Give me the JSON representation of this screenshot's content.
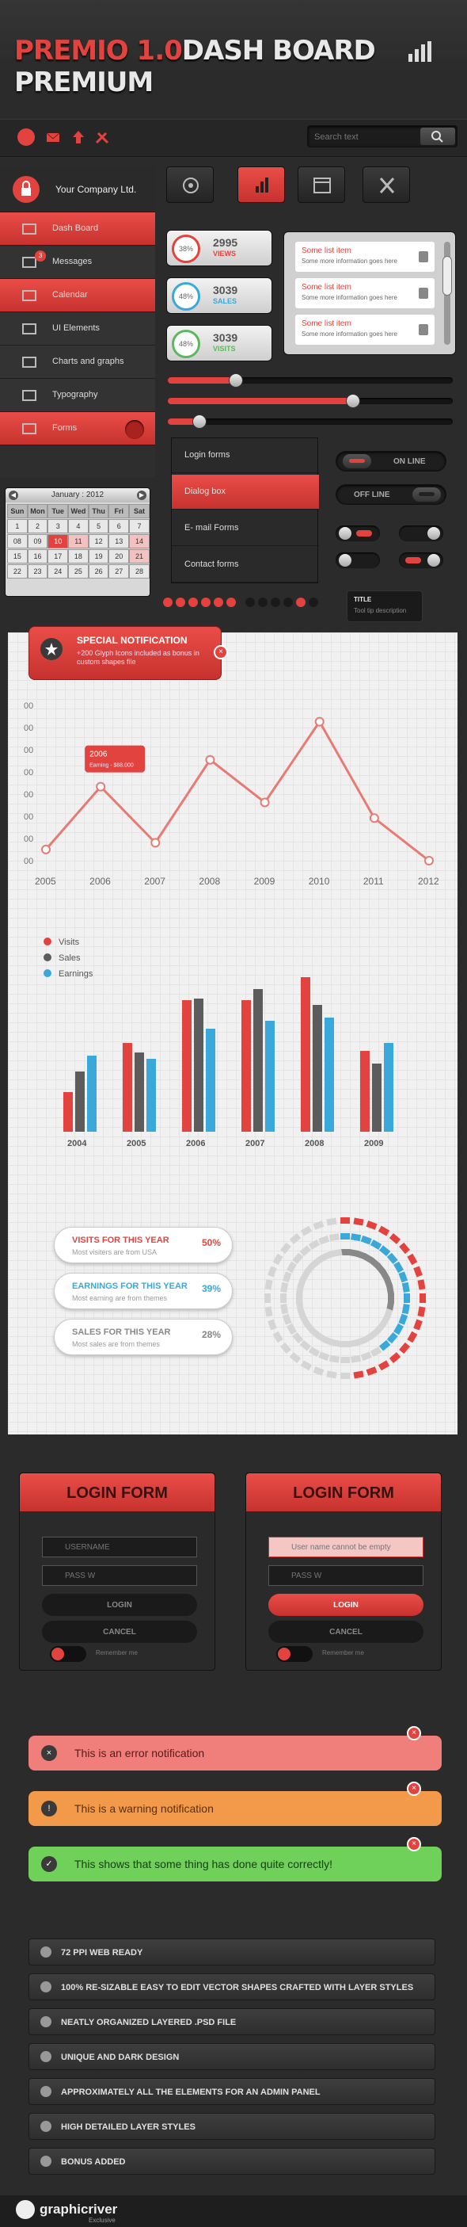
{
  "header": {
    "title_accent": "PREMIO 1.0",
    "title_rest": "DASH BOARD PREMIUM"
  },
  "topbar": {
    "search_placeholder": "Search text"
  },
  "sidebar": {
    "company": "Your Company Ltd.",
    "items": [
      {
        "label": "Dash Board",
        "icon": "presentation-icon",
        "active": true
      },
      {
        "label": "Messages",
        "icon": "envelope-icon",
        "badge": "3"
      },
      {
        "label": "Calendar",
        "icon": "calendar-icon",
        "active": true
      },
      {
        "label": "UI Elements",
        "icon": "grid-icon"
      },
      {
        "label": "Charts and graphs",
        "icon": "bar-chart-icon"
      },
      {
        "label": "Typography",
        "icon": "text-icon"
      },
      {
        "label": "Forms",
        "icon": "form-icon",
        "active": true
      }
    ]
  },
  "calendar": {
    "month": "January : 2012",
    "days": [
      "Sun",
      "Mon",
      "Tue",
      "Wed",
      "Thu",
      "Fri",
      "Sat"
    ],
    "rows": [
      [
        "1",
        "2",
        "3",
        "4",
        "5",
        "6",
        "7"
      ],
      [
        "08",
        "09",
        "10",
        "11",
        "12",
        "13",
        "14"
      ],
      [
        "15",
        "16",
        "17",
        "18",
        "19",
        "20",
        "21"
      ],
      [
        "22",
        "23",
        "24",
        "25",
        "26",
        "27",
        "28"
      ]
    ]
  },
  "stats": [
    {
      "pct": "38%",
      "value": "2995",
      "label": "VIEWS",
      "color": "#e3433f"
    },
    {
      "pct": "48%",
      "value": "3039",
      "label": "SALES",
      "color": "#3aa8d8"
    },
    {
      "pct": "48%",
      "value": "3039",
      "label": "VISITS",
      "color": "#5cb85c"
    }
  ],
  "list": [
    {
      "title": "Some list item",
      "sub": "Some more information goes here"
    },
    {
      "title": "Some list item",
      "sub": "Some more information goes here"
    },
    {
      "title": "Some list item",
      "sub": "Some more information goes here"
    }
  ],
  "sliders": [
    0.24,
    0.65,
    0.11
  ],
  "dropdown": [
    {
      "label": "Login forms"
    },
    {
      "label": "Dialog box",
      "active": true
    },
    {
      "label": "E- mail Forms"
    },
    {
      "label": "Contact forms"
    }
  ],
  "switches": {
    "on": "ON LINE",
    "off": "OFF LINE"
  },
  "tooltip": {
    "title": "TITLE",
    "text": "Tool tip description"
  },
  "notification": {
    "title": "SPECIAL NOTIFICATION",
    "text": "+200 Glyph Icons included as bonus in custom shapes file"
  },
  "chart_data": [
    {
      "type": "line",
      "x": [
        "2005",
        "2006",
        "2007",
        "2008",
        "2009",
        "2010",
        "2011",
        "2012"
      ],
      "values": [
        0.05,
        0.33,
        0.08,
        0.45,
        0.26,
        0.62,
        0.19,
        0.0
      ],
      "tooltip": {
        "year": "2006",
        "text": "Earning - $88.000"
      },
      "y_labels": [
        "00",
        "00",
        "00",
        "00",
        "00",
        "00",
        "00",
        "00"
      ],
      "color": "#e87a74"
    },
    {
      "type": "bar",
      "categories": [
        "2004",
        "2005",
        "2006",
        "2007",
        "2008",
        "2009"
      ],
      "series": [
        {
          "name": "Visits",
          "values": [
            50,
            112,
            166,
            166,
            195,
            102
          ],
          "color": "#e3433f"
        },
        {
          "name": "Sales",
          "values": [
            76,
            100,
            168,
            180,
            160,
            86
          ],
          "color": "#5c5c5c"
        },
        {
          "name": "Earnings",
          "values": [
            96,
            92,
            130,
            140,
            144,
            112
          ],
          "color": "#3aa8d8"
        }
      ],
      "ylim": [
        0,
        210
      ],
      "legend": "top-left"
    }
  ],
  "progress_cards": [
    {
      "title": "VISITS FOR THIS YEAR",
      "sub": "Most visiters are from USA",
      "value": "50%",
      "color": "#e3433f"
    },
    {
      "title": "EARNINGS FOR THIS YEAR",
      "sub": "Most earning are from themes",
      "value": "39%",
      "color": "#3aa8d8"
    },
    {
      "title": "SALES FOR THIS YEAR",
      "sub": "Most sales are from themes",
      "value": "28%",
      "color": "#888888"
    }
  ],
  "donut_rings": [
    {
      "fraction": 0.5,
      "color": "#e3433f"
    },
    {
      "fraction": 0.39,
      "color": "#3aa8d8"
    },
    {
      "fraction": 0.28,
      "color": "#888888"
    }
  ],
  "login": {
    "title": "LOGIN FORM",
    "username": "USERNAME",
    "password": "PASS W",
    "login": "LOGIN",
    "cancel": "CANCEL",
    "remember": "Remember me",
    "error": "User name cannot be empty"
  },
  "notes": [
    {
      "text": "This is an error notification",
      "icon": "x-icon",
      "bg": "#f07e7a",
      "fg": "#5a1a18"
    },
    {
      "text": "This is a warning notification",
      "icon": "exclamation-icon",
      "bg": "#f29a4a",
      "fg": "#5a2e08"
    },
    {
      "text": "This shows that some thing has done quite correctly!",
      "icon": "check-icon",
      "bg": "#6fd05a",
      "fg": "#173f10"
    }
  ],
  "features": [
    "72 PPI WEB READY",
    "100% RE-SIZABLE EASY TO EDIT VECTOR SHAPES CRAFTED WITH LAYER STYLES",
    "NEATLY ORGANIZED LAYERED .PSD FILE",
    "UNIQUE AND DARK DESIGN",
    "APPROXIMATELY ALL THE ELEMENTS FOR AN ADMIN PANEL",
    "HIGH DETAILED LAYER STYLES",
    "BONUS ADDED"
  ],
  "footer": {
    "brand": "graphicriver",
    "sub": "Exclusive"
  }
}
